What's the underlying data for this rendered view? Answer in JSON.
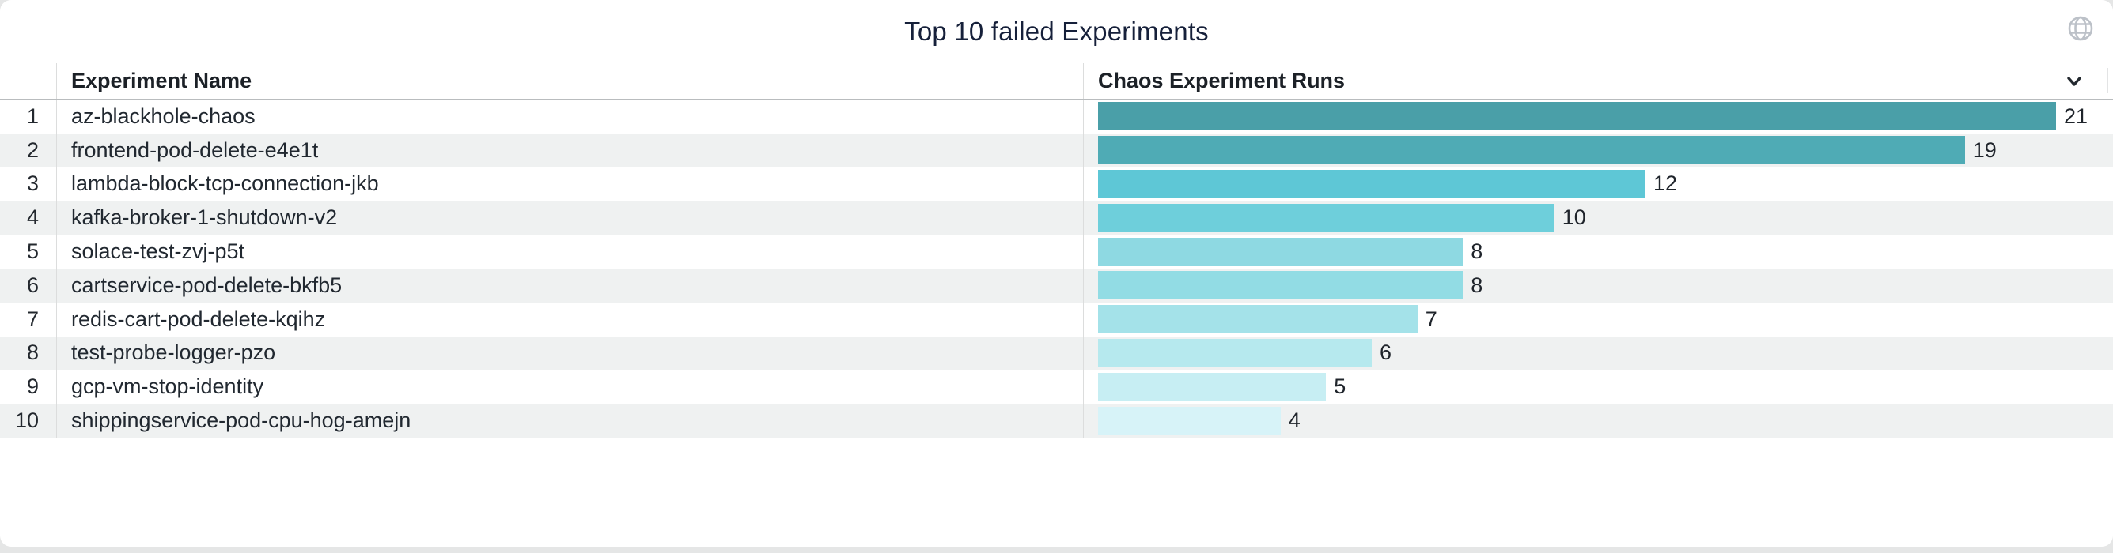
{
  "panel": {
    "title": "Top 10 failed Experiments"
  },
  "icons": {
    "globe": "globe-icon",
    "sort_chevron": "chevron-down-icon"
  },
  "table": {
    "columns": [
      {
        "label": "Experiment Name"
      },
      {
        "label": "Chaos Experiment Runs"
      }
    ],
    "rows": [
      {
        "rank": "1",
        "name": "az-blackhole-chaos",
        "value": 21,
        "bar_color": "#4a9fa8"
      },
      {
        "rank": "2",
        "name": "frontend-pod-delete-e4e1t",
        "value": 19,
        "bar_color": "#4fabb5"
      },
      {
        "rank": "3",
        "name": "lambda-block-tcp-connection-jkb",
        "value": 12,
        "bar_color": "#5ec7d6"
      },
      {
        "rank": "4",
        "name": "kafka-broker-1-shutdown-v2",
        "value": 10,
        "bar_color": "#6ecfdb"
      },
      {
        "rank": "5",
        "name": "solace-test-zvj-p5t",
        "value": 8,
        "bar_color": "#8ed9e2"
      },
      {
        "rank": "6",
        "name": "cartservice-pod-delete-bkfb5",
        "value": 8,
        "bar_color": "#92dce4"
      },
      {
        "rank": "7",
        "name": "redis-cart-pod-delete-kqihz",
        "value": 7,
        "bar_color": "#a4e2e9"
      },
      {
        "rank": "8",
        "name": "test-probe-logger-pzo",
        "value": 6,
        "bar_color": "#b6e9ee"
      },
      {
        "rank": "9",
        "name": "gcp-vm-stop-identity",
        "value": 5,
        "bar_color": "#c7eef3"
      },
      {
        "rank": "10",
        "name": "shippingservice-pod-cpu-hog-amejn",
        "value": 4,
        "bar_color": "#d7f3f8"
      }
    ]
  },
  "colors": {
    "title_text": "#16203a",
    "header_text": "#1c2127",
    "row_text": "#212830",
    "stripe": "#eff1f1",
    "divider": "#dcdddd",
    "header_border": "#b9bcbe",
    "page_bg": "#e5e6e6",
    "card_bg": "#ffffff",
    "icon_gray": "#b9bec6"
  },
  "chart_data": {
    "type": "bar",
    "orientation": "horizontal",
    "title": "Top 10 failed Experiments",
    "categories": [
      "az-blackhole-chaos",
      "frontend-pod-delete-e4e1t",
      "lambda-block-tcp-connection-jkb",
      "kafka-broker-1-shutdown-v2",
      "solace-test-zvj-p5t",
      "cartservice-pod-delete-bkfb5",
      "redis-cart-pod-delete-kqihz",
      "test-probe-logger-pzo",
      "gcp-vm-stop-identity",
      "shippingservice-pod-cpu-hog-amejn"
    ],
    "values": [
      21,
      19,
      12,
      10,
      8,
      8,
      7,
      6,
      5,
      4
    ],
    "value_axis_label": "Chaos Experiment Runs",
    "category_axis_label": "Experiment Name",
    "xlim": [
      0,
      21
    ],
    "grid": false,
    "legend": "none",
    "bar_colors": [
      "#4a9fa8",
      "#4fabb5",
      "#5ec7d6",
      "#6ecfdb",
      "#8ed9e2",
      "#92dce4",
      "#a4e2e9",
      "#b6e9ee",
      "#c7eef3",
      "#d7f3f8"
    ]
  }
}
